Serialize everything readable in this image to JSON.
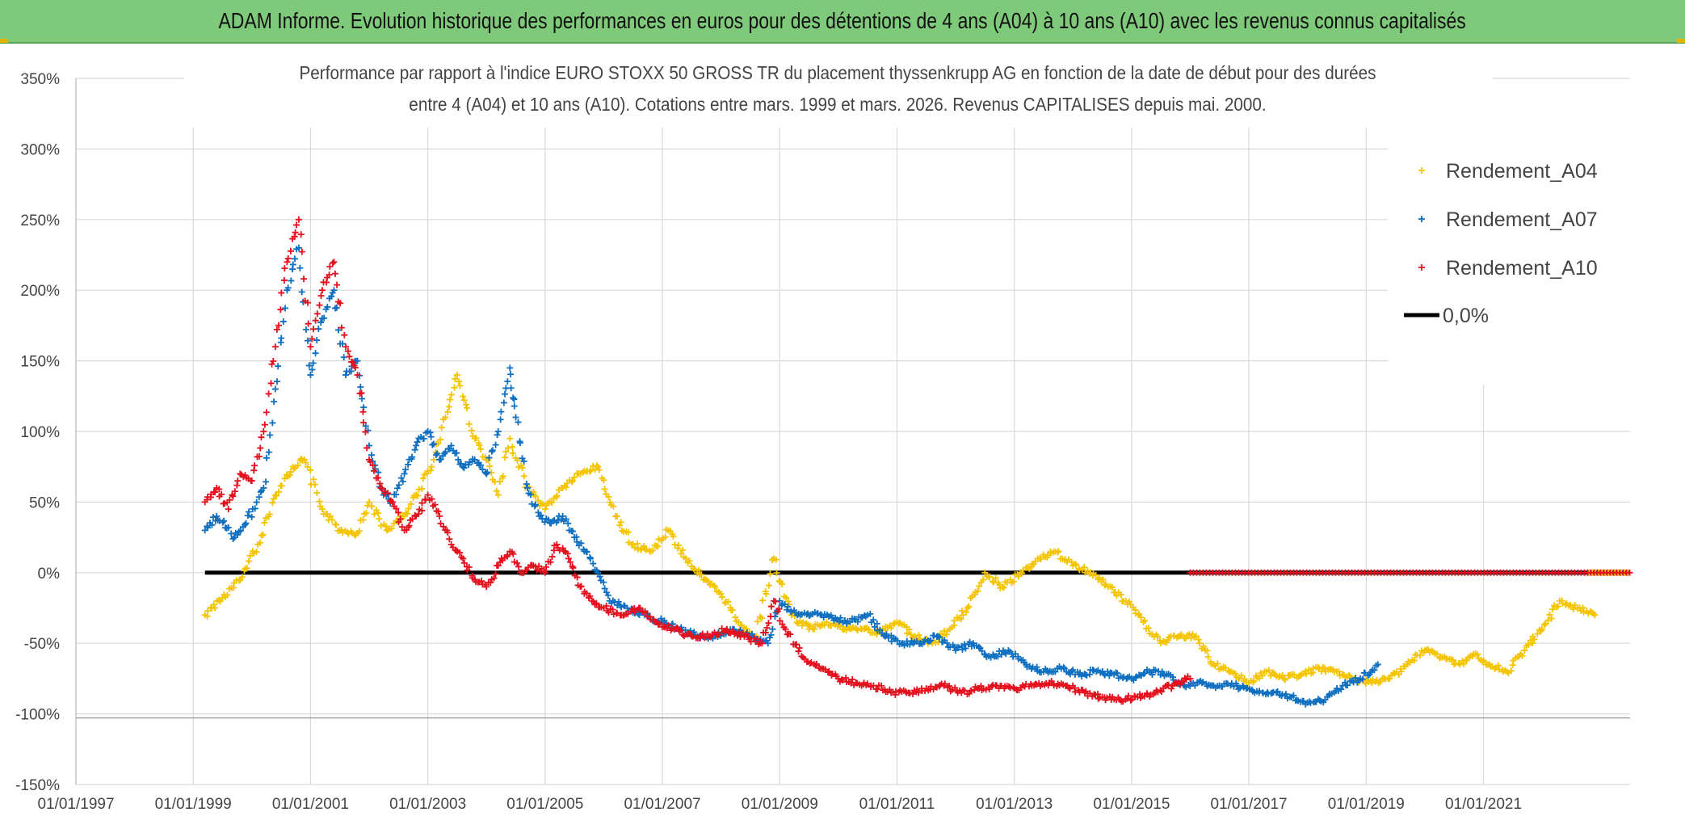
{
  "banner_title": "ADAM Informe. Evolution historique des performances en euros pour des détentions de 4 ans (A04) à 10 ans (A10) avec les revenus connus capitalisés",
  "colors": {
    "banner": "#7fc97a",
    "A04": "#f5c400",
    "A07": "#0f6fc0",
    "A10": "#e5101e",
    "zero_line": "#000000",
    "grid": "#d9d9d9"
  },
  "chart_data": {
    "type": "scatter",
    "title_line1": "Performance par rapport à l'indice EURO STOXX 50 GROSS TR  du placement thyssenkrupp AG en fonction de la date de début pour des durées",
    "title_line2": "entre 4 (A04) et 10 ans (A10). Cotations entre mars. 1999 et mars. 2026. Revenus CAPITALISES depuis mai. 2000.",
    "xlabel": "",
    "ylabel": "",
    "x_range_years": [
      1997.0,
      2023.5
    ],
    "ylim": [
      -150,
      350
    ],
    "y_ticks": [
      350,
      300,
      250,
      200,
      150,
      100,
      50,
      0,
      -50,
      -100,
      -150
    ],
    "y_tick_labels": [
      "350%",
      "300%",
      "250%",
      "200%",
      "150%",
      "100%",
      "50%",
      "0%",
      "-50%",
      "-100%",
      "-150%"
    ],
    "x_ticks": [
      1997,
      1999,
      2001,
      2003,
      2005,
      2007,
      2009,
      2011,
      2013,
      2015,
      2017,
      2019,
      2021
    ],
    "x_tick_labels": [
      "01/01/1997",
      "01/01/1999",
      "01/01/2001",
      "01/01/2003",
      "01/01/2005",
      "01/01/2007",
      "01/01/2009",
      "01/01/2011",
      "01/01/2013",
      "01/01/2015",
      "01/01/2017",
      "01/01/2019",
      "01/01/2021"
    ],
    "grid": true,
    "legend_position": "top-right",
    "series": [
      {
        "name": "Rendement_A04",
        "marker": "+",
        "x": [
          1999.2,
          1999.5,
          1999.8,
          2000.1,
          2000.4,
          2000.7,
          2000.9,
          2001.2,
          2001.5,
          2001.8,
          2002.0,
          2002.3,
          2002.6,
          2002.8,
          2003.1,
          2003.3,
          2003.5,
          2003.8,
          2004.0,
          2004.2,
          2004.4,
          2004.7,
          2005.0,
          2005.3,
          2005.6,
          2005.9,
          2006.2,
          2006.5,
          2006.8,
          2007.1,
          2007.4,
          2007.7,
          2008.0,
          2008.3,
          2008.6,
          2008.9,
          2009.2,
          2009.5,
          2009.8,
          2010.1,
          2010.4,
          2010.7,
          2011.0,
          2011.3,
          2011.6,
          2011.9,
          2012.2,
          2012.5,
          2012.8,
          2013.1,
          2013.4,
          2013.7,
          2014.0,
          2014.3,
          2014.6,
          2014.9,
          2015.2,
          2015.5,
          2015.8,
          2016.1,
          2016.4,
          2016.7,
          2017.0,
          2017.3,
          2017.6,
          2017.9,
          2018.2,
          2018.5,
          2018.8,
          2019.1,
          2019.4,
          2019.7,
          2020.0,
          2020.3,
          2020.6,
          2020.9,
          2021.1,
          2021.4,
          2021.7,
          2022.0,
          2022.3,
          2022.6,
          2022.9
        ],
        "y": [
          -30,
          -18,
          -5,
          20,
          55,
          75,
          80,
          45,
          30,
          28,
          50,
          30,
          40,
          55,
          80,
          110,
          140,
          95,
          80,
          55,
          95,
          60,
          45,
          60,
          70,
          75,
          40,
          20,
          15,
          30,
          10,
          -5,
          -15,
          -35,
          -45,
          10,
          -30,
          -40,
          -35,
          -40,
          -40,
          -42,
          -35,
          -45,
          -50,
          -40,
          -25,
          0,
          -10,
          0,
          10,
          15,
          5,
          0,
          -10,
          -20,
          -35,
          -50,
          -45,
          -45,
          -65,
          -70,
          -78,
          -70,
          -75,
          -72,
          -68,
          -70,
          -75,
          -78,
          -75,
          -65,
          -55,
          -60,
          -65,
          -58,
          -65,
          -70,
          -55,
          -40,
          -20,
          -25,
          -30
        ]
      },
      {
        "name": "Rendement_A07",
        "marker": "+",
        "x": [
          1999.2,
          1999.4,
          1999.7,
          1999.9,
          2000.2,
          2000.4,
          2000.6,
          2000.8,
          2001.0,
          2001.2,
          2001.4,
          2001.6,
          2001.8,
          2002.0,
          2002.2,
          2002.4,
          2002.6,
          2002.8,
          2003.0,
          2003.2,
          2003.4,
          2003.6,
          2003.8,
          2004.0,
          2004.2,
          2004.4,
          2004.5,
          2004.7,
          2004.9,
          2005.1,
          2005.3,
          2005.5,
          2005.7,
          2005.9,
          2006.1,
          2006.4,
          2006.7,
          2007.0,
          2007.3,
          2007.6,
          2007.9,
          2008.2,
          2008.5,
          2008.8,
          2009.0,
          2009.3,
          2009.6,
          2009.9,
          2010.2,
          2010.5,
          2010.8,
          2011.1,
          2011.4,
          2011.7,
          2012.0,
          2012.3,
          2012.6,
          2012.9,
          2013.2,
          2013.5,
          2013.8,
          2014.1,
          2014.4,
          2014.7,
          2015.0,
          2015.3,
          2015.6,
          2015.9,
          2016.2,
          2016.5,
          2016.8,
          2017.1,
          2017.4,
          2017.7,
          2018.0,
          2018.3,
          2018.6,
          2018.9,
          2019.2
        ],
        "y": [
          30,
          40,
          25,
          35,
          60,
          130,
          200,
          230,
          140,
          180,
          200,
          140,
          150,
          90,
          60,
          50,
          70,
          90,
          100,
          80,
          90,
          75,
          80,
          70,
          100,
          145,
          110,
          60,
          40,
          35,
          40,
          25,
          15,
          0,
          -20,
          -25,
          -30,
          -35,
          -40,
          -45,
          -45,
          -40,
          -45,
          -50,
          -20,
          -30,
          -28,
          -32,
          -35,
          -30,
          -45,
          -50,
          -50,
          -45,
          -55,
          -50,
          -60,
          -55,
          -65,
          -70,
          -68,
          -72,
          -70,
          -72,
          -75,
          -70,
          -72,
          -80,
          -78,
          -80,
          -80,
          -85,
          -85,
          -88,
          -92,
          -90,
          -80,
          -75,
          -65
        ]
      },
      {
        "name": "Rendement_A10",
        "marker": "+",
        "x": [
          1999.2,
          1999.4,
          1999.6,
          1999.8,
          2000.0,
          2000.2,
          2000.4,
          2000.6,
          2000.8,
          2001.0,
          2001.2,
          2001.4,
          2001.6,
          2001.8,
          2002.0,
          2002.2,
          2002.4,
          2002.6,
          2002.8,
          2003.0,
          2003.2,
          2003.4,
          2003.6,
          2003.8,
          2004.0,
          2004.2,
          2004.4,
          2004.6,
          2004.8,
          2005.0,
          2005.2,
          2005.4,
          2005.6,
          2005.8,
          2006.0,
          2006.3,
          2006.6,
          2006.9,
          2007.2,
          2007.5,
          2007.8,
          2008.1,
          2008.4,
          2008.7,
          2008.9,
          2009.1,
          2009.4,
          2009.7,
          2010.0,
          2010.3,
          2010.6,
          2010.9,
          2011.2,
          2011.5,
          2011.8,
          2012.1,
          2012.4,
          2012.7,
          2013.0,
          2013.3,
          2013.6,
          2013.9,
          2014.2,
          2014.5,
          2014.8,
          2015.1,
          2015.4,
          2015.7,
          2016.0
        ],
        "y": [
          50,
          60,
          45,
          70,
          65,
          100,
          160,
          220,
          250,
          160,
          200,
          220,
          160,
          140,
          80,
          60,
          50,
          30,
          40,
          55,
          40,
          20,
          10,
          -5,
          -10,
          5,
          15,
          0,
          5,
          0,
          20,
          10,
          -10,
          -20,
          -25,
          -30,
          -25,
          -35,
          -40,
          -45,
          -45,
          -40,
          -45,
          -50,
          -20,
          -40,
          -60,
          -68,
          -75,
          -78,
          -80,
          -85,
          -85,
          -82,
          -80,
          -85,
          -82,
          -80,
          -82,
          -80,
          -78,
          -80,
          -85,
          -88,
          -90,
          -88,
          -85,
          -80,
          -75
        ]
      },
      {
        "name": "0,0%",
        "type": "line",
        "x": [
          1999.2,
          2023.5
        ],
        "y": [
          0,
          0
        ]
      }
    ],
    "flat_marker_segment": {
      "series": "Rendement_A10",
      "x": [
        2016.0,
        2023.5
      ],
      "y": 0
    },
    "flat_marker_segment_a04": {
      "series": "Rendement_A04",
      "x": [
        2022.8,
        2023.5
      ],
      "y": 0
    }
  }
}
